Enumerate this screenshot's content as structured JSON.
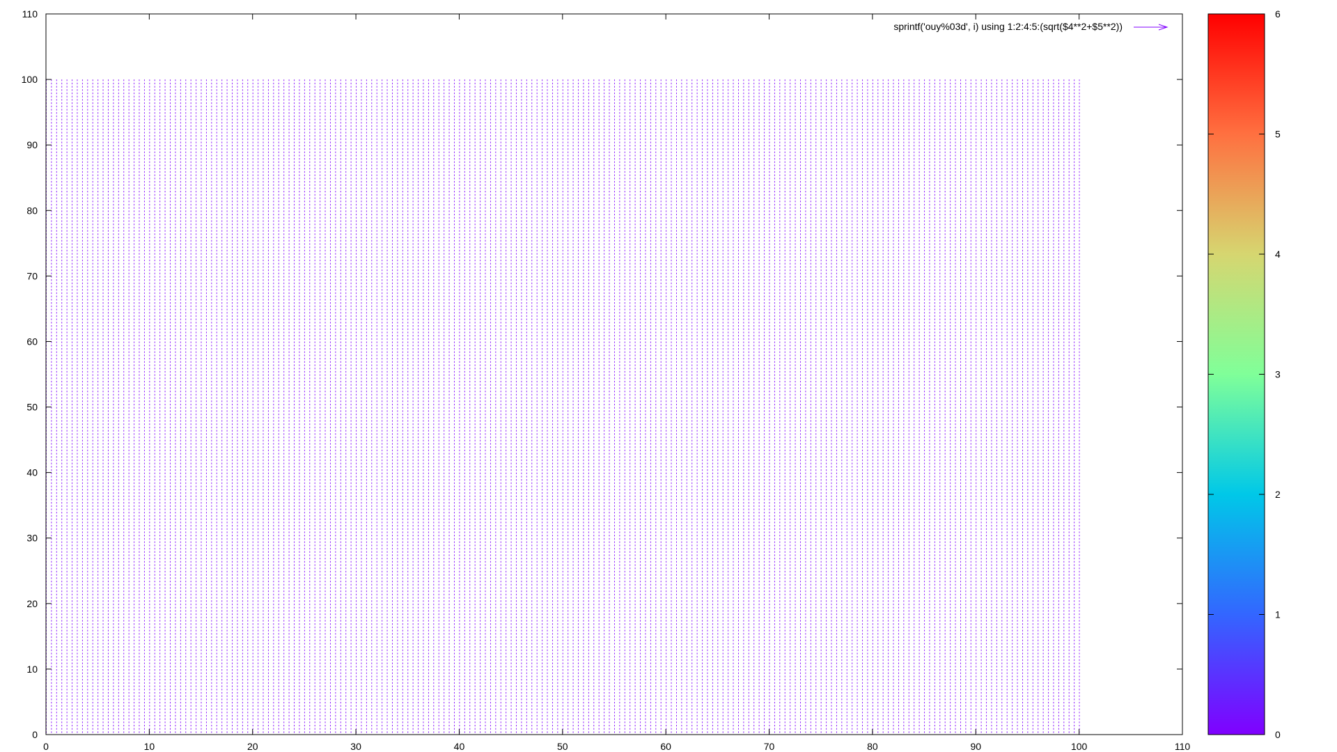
{
  "chart_data": {
    "type": "vector-field",
    "title": "",
    "xlabel": "",
    "ylabel": "",
    "xlim": [
      0,
      110
    ],
    "ylim": [
      0,
      110
    ],
    "x_ticks": [
      "0",
      "10",
      "20",
      "30",
      "40",
      "50",
      "60",
      "70",
      "80",
      "90",
      "100",
      "110"
    ],
    "y_ticks": [
      "0",
      "10",
      "20",
      "30",
      "40",
      "50",
      "60",
      "70",
      "80",
      "90",
      "100",
      "110"
    ],
    "grid": false,
    "legend_position": "top-right",
    "series": [
      {
        "name": "sprintf('ouy%03d', i) using 1:2:4:5:(sqrt($4**2+$5**2))",
        "x_range": [
          0,
          100
        ],
        "y_range": [
          0,
          100
        ],
        "grid_step": 0.5,
        "magnitude": 0,
        "color": "#8000ff"
      }
    ],
    "colorbar": {
      "palette": "rainbow",
      "range": [
        0,
        6
      ],
      "ticks": [
        "0",
        "1",
        "2",
        "3",
        "4",
        "5",
        "6"
      ],
      "position": "right"
    }
  }
}
